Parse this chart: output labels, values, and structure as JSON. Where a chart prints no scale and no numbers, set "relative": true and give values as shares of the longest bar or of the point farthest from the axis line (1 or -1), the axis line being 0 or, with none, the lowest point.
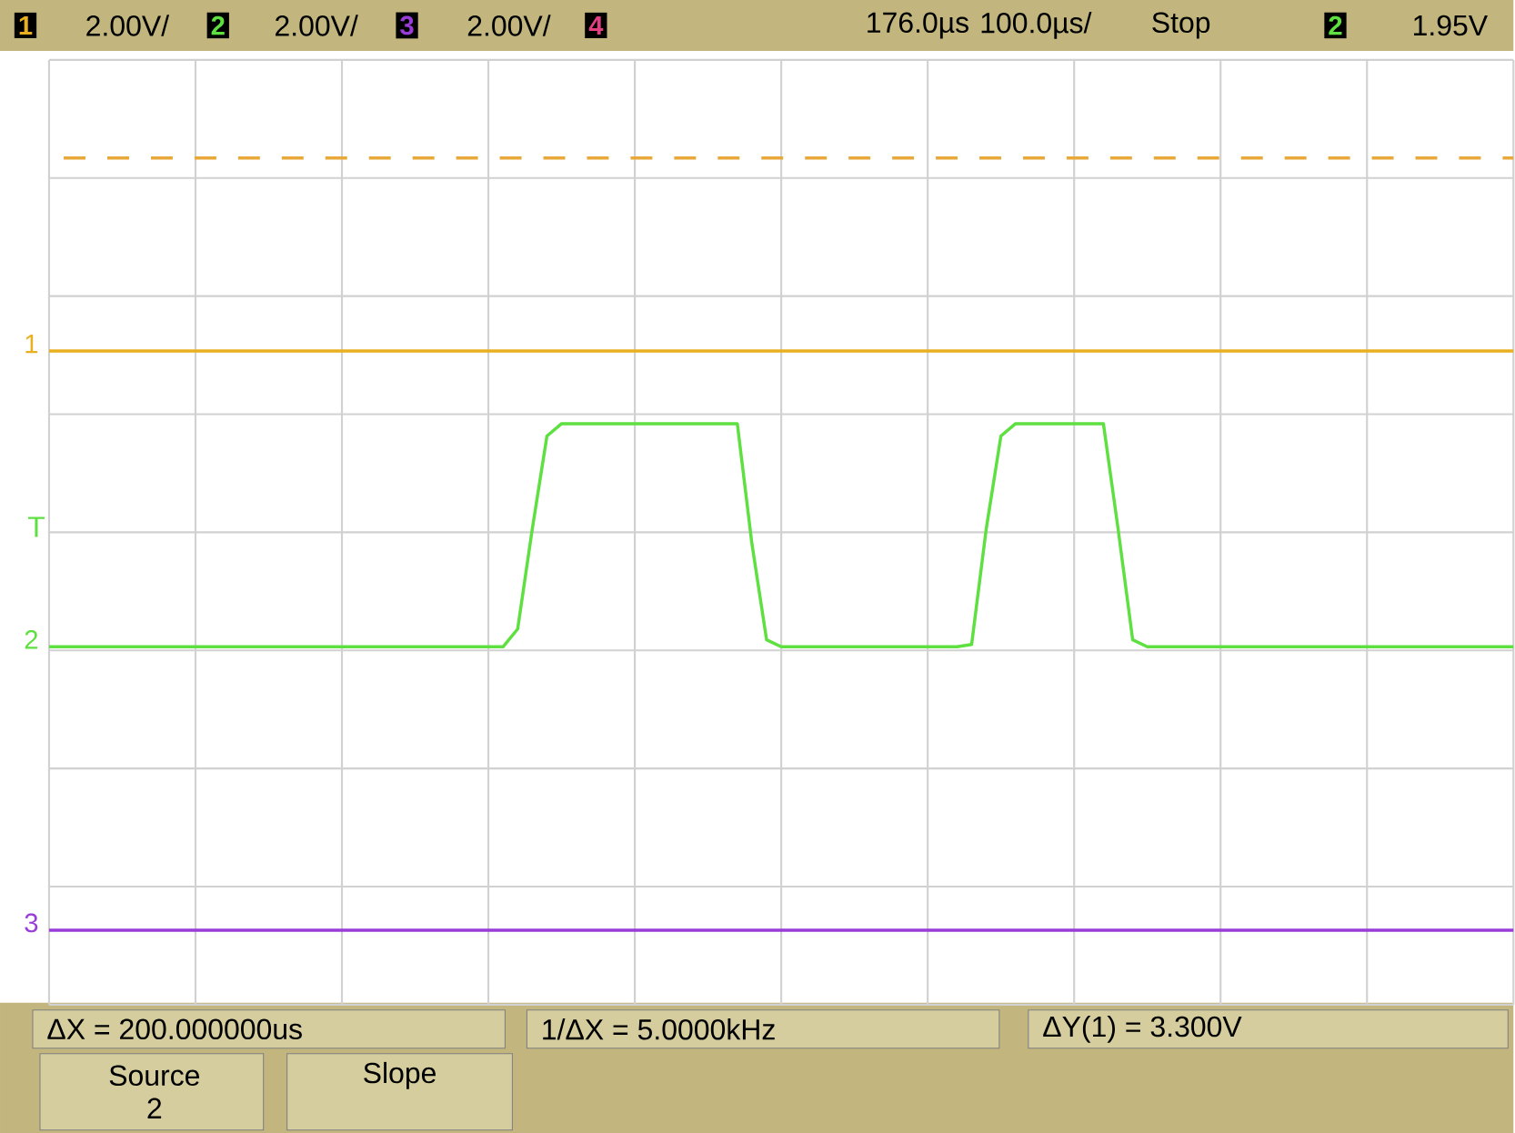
{
  "chart_data": {
    "type": "line",
    "relative": true,
    "grid": true,
    "marker": "none",
    "categories": [
      null,
      null,
      null,
      null,
      null,
      null,
      null,
      null,
      null,
      null,
      null,
      null,
      null,
      null,
      null,
      null,
      null,
      null,
      null,
      null,
      null,
      null,
      null,
      null,
      null,
      null,
      null,
      null,
      null,
      null,
      null,
      null,
      null,
      null,
      null,
      null,
      null,
      null,
      null,
      null,
      null,
      null,
      null,
      null,
      null,
      null,
      null,
      null,
      null,
      null,
      null,
      null,
      null,
      null,
      null,
      null,
      null,
      null,
      null,
      null,
      null,
      null,
      null,
      null,
      null,
      null,
      null,
      null,
      null,
      null,
      null,
      null,
      null,
      null,
      null,
      null,
      null,
      null,
      null,
      null,
      null,
      null,
      null,
      null,
      null,
      null,
      null,
      null,
      null,
      null,
      null,
      null,
      null,
      null,
      null,
      null,
      null,
      null,
      null,
      null,
      null
    ],
    "series": [
      {
        "color": "#e8a83a",
        "line_style": "dashed",
        "values": [
          null,
          1,
          1,
          1,
          1,
          1,
          1,
          1,
          1,
          1,
          1,
          1,
          1,
          1,
          1,
          1,
          1,
          1,
          1,
          1,
          1,
          1,
          1,
          1,
          1,
          1,
          1,
          1,
          1,
          1,
          1,
          1,
          1,
          1,
          1,
          1,
          1,
          1,
          1,
          1,
          1,
          1,
          1,
          1,
          1,
          1,
          1,
          1,
          1,
          1,
          1,
          1,
          1,
          1,
          1,
          1,
          1,
          1,
          1,
          1,
          1,
          1,
          1,
          1,
          1,
          1,
          1,
          1,
          1,
          1,
          1,
          1,
          1,
          1,
          1,
          1,
          1,
          1,
          1,
          1,
          1,
          1,
          1,
          1,
          1,
          1,
          1,
          1,
          1,
          1,
          1,
          1,
          1,
          1,
          1,
          1,
          1,
          1,
          1,
          1,
          1
        ]
      },
      {
        "name": "1",
        "color": "#e8b020",
        "values": [
          0.75,
          0.75,
          0.75,
          0.75,
          0.75,
          0.75,
          0.75,
          0.75,
          0.75,
          0.75,
          0.75,
          0.75,
          0.75,
          0.75,
          0.75,
          0.75,
          0.75,
          0.75,
          0.75,
          0.75,
          0.75,
          0.75,
          0.75,
          0.75,
          0.75,
          0.75,
          0.75,
          0.75,
          0.75,
          0.75,
          0.75,
          0.75,
          0.75,
          0.75,
          0.75,
          0.75,
          0.75,
          0.75,
          0.75,
          0.75,
          0.75,
          0.75,
          0.75,
          0.75,
          0.75,
          0.75,
          0.75,
          0.75,
          0.75,
          0.75,
          0.75,
          0.75,
          0.75,
          0.75,
          0.75,
          0.75,
          0.75,
          0.75,
          0.75,
          0.75,
          0.75,
          0.75,
          0.75,
          0.75,
          0.75,
          0.75,
          0.75,
          0.75,
          0.75,
          0.75,
          0.75,
          0.75,
          0.75,
          0.75,
          0.75,
          0.75,
          0.75,
          0.75,
          0.75,
          0.75,
          0.75,
          0.75,
          0.75,
          0.75,
          0.75,
          0.75,
          0.75,
          0.75,
          0.75,
          0.75,
          0.75,
          0.75,
          0.75,
          0.75,
          0.75,
          0.75,
          0.75,
          0.75,
          0.75,
          0.75,
          0.75
        ]
      },
      {
        "name": "2",
        "color": "#5ee040",
        "values": [
          0.367,
          0.367,
          0.367,
          0.367,
          0.367,
          0.367,
          0.367,
          0.367,
          0.367,
          0.367,
          0.367,
          0.367,
          0.367,
          0.367,
          0.367,
          0.367,
          0.367,
          0.367,
          0.367,
          0.367,
          0.367,
          0.367,
          0.367,
          0.367,
          0.367,
          0.367,
          0.367,
          0.367,
          0.367,
          0.367,
          0.367,
          0.367,
          0.39,
          0.52,
          0.64,
          0.656,
          0.656,
          0.656,
          0.656,
          0.656,
          0.656,
          0.656,
          0.656,
          0.656,
          0.656,
          0.656,
          0.656,
          0.656,
          0.5,
          0.376,
          0.367,
          0.367,
          0.367,
          0.367,
          0.367,
          0.367,
          0.367,
          0.367,
          0.367,
          0.367,
          0.367,
          0.367,
          0.367,
          0.37,
          0.52,
          0.64,
          0.656,
          0.656,
          0.656,
          0.656,
          0.656,
          0.656,
          0.656,
          0.52,
          0.376,
          0.367,
          0.367,
          0.367,
          0.367,
          0.367,
          0.367,
          0.367,
          0.367,
          0.367,
          0.367,
          0.367,
          0.367,
          0.367,
          0.367,
          0.367,
          0.367,
          0.367,
          0.367,
          0.367,
          0.367,
          0.367,
          0.367,
          0.367,
          0.367,
          0.367,
          0.367
        ]
      },
      {
        "name": "3",
        "color": "#9a3cd8",
        "values": [
          0,
          0,
          0,
          0,
          0,
          0,
          0,
          0,
          0,
          0,
          0,
          0,
          0,
          0,
          0,
          0,
          0,
          0,
          0,
          0,
          0,
          0,
          0,
          0,
          0,
          0,
          0,
          0,
          0,
          0,
          0,
          0,
          0,
          0,
          0,
          0,
          0,
          0,
          0,
          0,
          0,
          0,
          0,
          0,
          0,
          0,
          0,
          0,
          0,
          0,
          0,
          0,
          0,
          0,
          0,
          0,
          0,
          0,
          0,
          0,
          0,
          0,
          0,
          0,
          0,
          0,
          0,
          0,
          0,
          0,
          0,
          0,
          0,
          0,
          0,
          0,
          0,
          0,
          0,
          0,
          0,
          0,
          0,
          0,
          0,
          0,
          0,
          0,
          0,
          0,
          0,
          0,
          0,
          0,
          0,
          0,
          0,
          0,
          0,
          0,
          0
        ]
      }
    ],
    "annotations": [
      "1",
      "2.00V/",
      "2",
      "2.00V/",
      "3",
      "2.00V/",
      "4",
      "176.0µs",
      "100.0µs/",
      "Stop",
      "2",
      "1.95V",
      "T",
      "ΔX = 200.000000us",
      "1/ΔX = 5.0000kHz",
      "ΔY(1) = 3.300V",
      "Source",
      "2",
      "Slope"
    ]
  }
}
